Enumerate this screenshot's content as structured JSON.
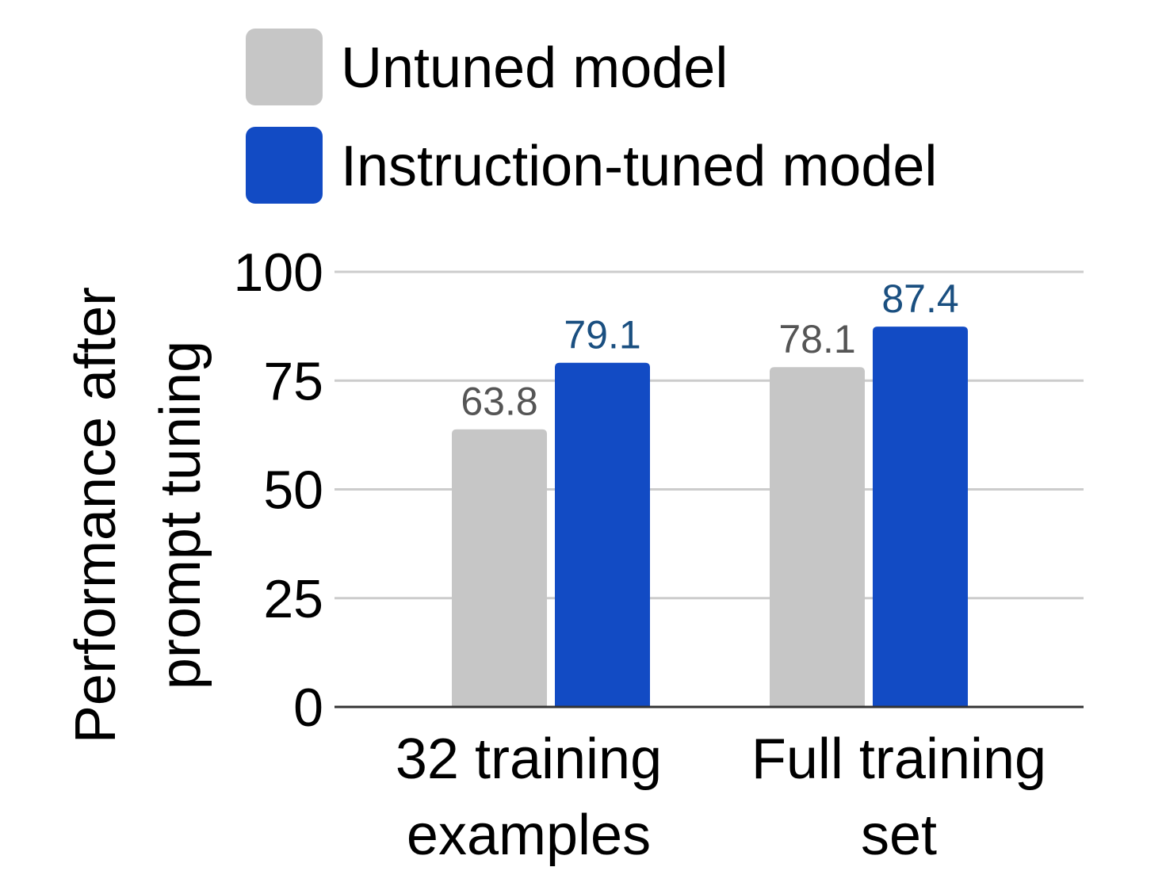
{
  "chart_data": {
    "type": "bar",
    "title": "",
    "categories": [
      [
        "32 training",
        "examples"
      ],
      [
        "Full training",
        "set"
      ]
    ],
    "series": [
      {
        "name": "Untuned model",
        "values": [
          63.8,
          78.1
        ],
        "color": "#c6c6c6",
        "label_color": "#555555"
      },
      {
        "name": "Instruction-tuned model",
        "values": [
          79.1,
          87.4
        ],
        "color": "#124bc4",
        "label_color": "#1a4f80"
      }
    ],
    "ylabel": [
      "Performance after",
      "prompt tuning"
    ],
    "xlabel": "",
    "ylim": [
      0,
      100
    ],
    "yticks": [
      0,
      25,
      50,
      75,
      100
    ],
    "grid": true,
    "legend_position": "top"
  }
}
